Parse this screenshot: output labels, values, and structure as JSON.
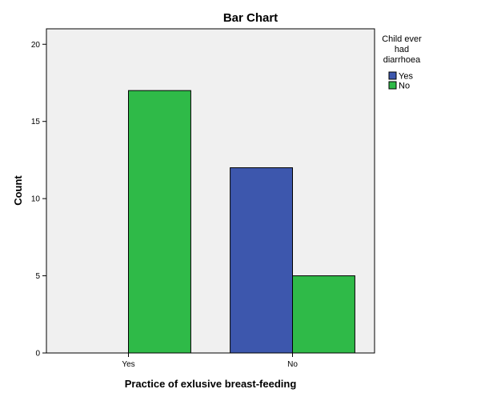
{
  "chart_data": {
    "type": "bar",
    "title": "Bar Chart",
    "xlabel": "Practice of exlusive breast-feeding",
    "ylabel": "Count",
    "categories": [
      "Yes",
      "No"
    ],
    "series": [
      {
        "name": "Yes",
        "color": "#3d57ad",
        "values": [
          0,
          12
        ]
      },
      {
        "name": "No",
        "color": "#2fba48",
        "values": [
          17,
          5
        ]
      }
    ],
    "ylim": [
      0,
      21
    ],
    "yticks": [
      0,
      5,
      10,
      15,
      20
    ],
    "legend": {
      "title_lines": [
        "Child ever",
        "had",
        "diarrhoea"
      ],
      "position": "right"
    },
    "plot_background": "#f0f0f0",
    "grid": false
  }
}
